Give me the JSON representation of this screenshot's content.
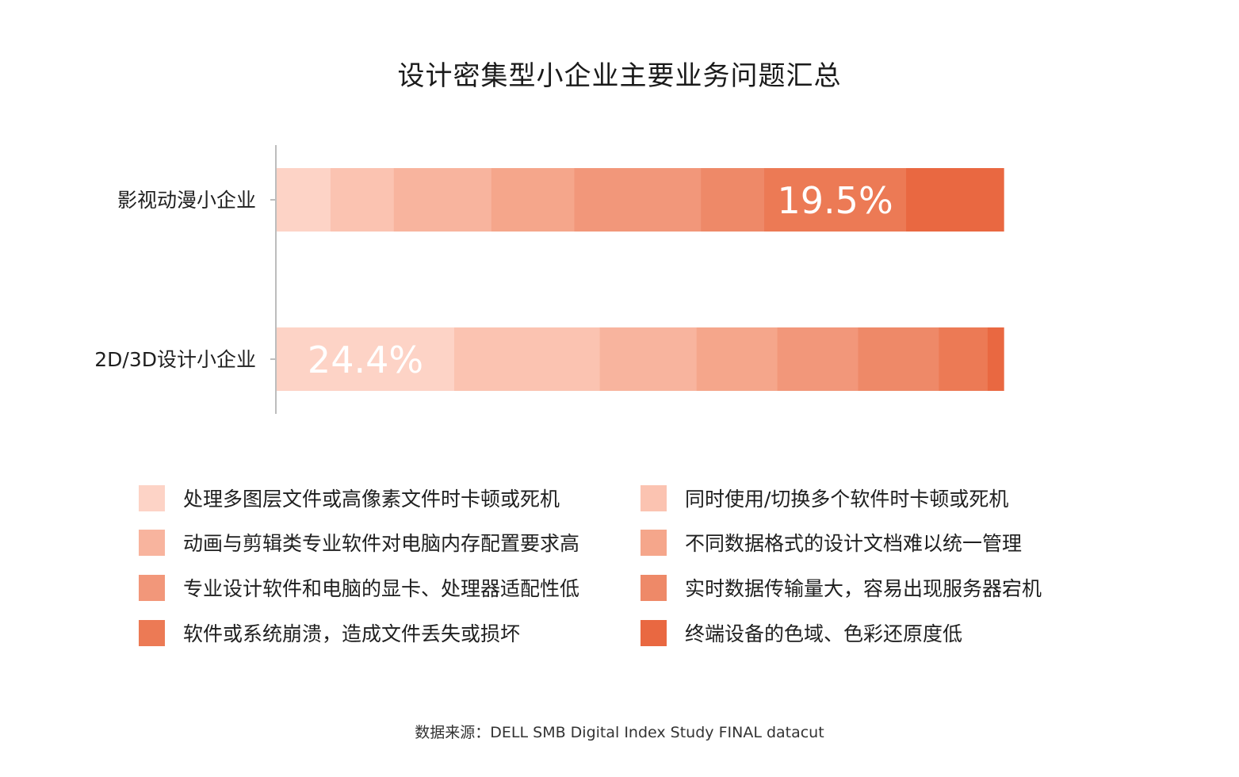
{
  "chart_data": {
    "type": "bar",
    "orientation": "horizontal",
    "stacked": true,
    "title": "设计密集型小企业主要业务问题汇总",
    "categories": [
      "影视动漫小企业",
      "2D/3D设计小企业"
    ],
    "xlim": [
      0,
      100
    ],
    "grid": false,
    "legend_position": "bottom",
    "series": [
      {
        "name": "处理多图层文件或高像素文件时卡顿或死机",
        "color": "#FDD3C6",
        "values": [
          7.4,
          24.4
        ]
      },
      {
        "name": "同时使用/切换多个软件时卡顿或死机",
        "color": "#FBC3B1",
        "values": [
          8.7,
          20.0
        ]
      },
      {
        "name": "动画与剪辑类专业软件对电脑内存配置要求高",
        "color": "#F8B49E",
        "values": [
          13.4,
          13.3
        ]
      },
      {
        "name": "不同数据格式的设计文档难以统一管理",
        "color": "#F5A68B",
        "values": [
          11.4,
          11.1
        ]
      },
      {
        "name": "专业设计软件和电脑的显卡、处理器适配性低",
        "color": "#F2977A",
        "values": [
          17.4,
          11.1
        ]
      },
      {
        "name": "实时数据传输量大，容易出现服务器宕机",
        "color": "#EE8968",
        "values": [
          8.7,
          11.1
        ]
      },
      {
        "name": "软件或系统崩溃，造成文件丢失或损坏",
        "color": "#EC7A55",
        "values": [
          19.5,
          6.7
        ]
      },
      {
        "name": "终端设备的色域、色彩还原度低",
        "color": "#E96841",
        "values": [
          13.4,
          2.2
        ]
      }
    ],
    "data_labels": [
      {
        "category": "影视动漫小企业",
        "series": "软件或系统崩溃，造成文件丢失或损坏",
        "text": "19.5%"
      },
      {
        "category": "2D/3D设计小企业",
        "series": "处理多图层文件或高像素文件时卡顿或死机",
        "text": "24.4%"
      }
    ],
    "legend_order": [
      0,
      2,
      4,
      6,
      1,
      3,
      5,
      7
    ],
    "source": "数据来源：DELL SMB Digital Index Study FINAL datacut"
  }
}
